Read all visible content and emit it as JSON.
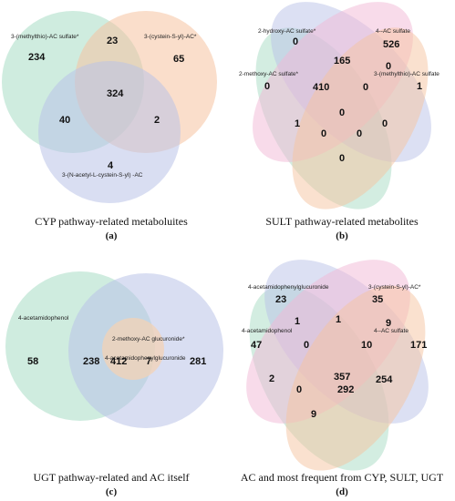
{
  "colors": {
    "green": "#a8dcc4",
    "orange": "#f6c3a0",
    "blue": "#b9c2e8",
    "pink": "#f1b8d6",
    "cream": "#f3d2b6"
  },
  "panels": [
    {
      "caption": "CYP pathway-related metaboluites",
      "letter": "a",
      "sets": [
        "3-(methylthio)-AC sulfate*",
        "3-(cystein-S-yl)-AC*",
        "3-(N-acetyl-L-cystein-S-yl) -AC"
      ],
      "values": [
        "234",
        "23",
        "65",
        "324",
        "40",
        "2",
        "4"
      ]
    },
    {
      "caption": "SULT pathway-related metabolites",
      "letter": "b",
      "sets": [
        "2-hydroxy-AC sulfate*",
        "4--AC sulfate",
        "2-methoxy-AC sulfate*",
        "3-(methylthio)-AC sulfate"
      ],
      "values": [
        "0",
        "526",
        "165",
        "0",
        "0",
        "410",
        "0",
        "1",
        "0",
        "1",
        "0",
        "0",
        "0",
        "0",
        "0"
      ]
    },
    {
      "caption": "UGT pathway-related and AC itself",
      "letter": "c",
      "sets": [
        "4-acetamidophenol",
        "2-methoxy-AC glucuronide*",
        "4-acetamidophenylglucuronide"
      ],
      "values": [
        "58",
        "238",
        "412",
        "7",
        "281"
      ]
    },
    {
      "caption": "AC and most frequent from CYP, SULT, UGT",
      "letter": "d",
      "sets": [
        "4-acetamidophenylglucuronide",
        "3-(cystein-S-yl)-AC*",
        "4-acetamidophenol",
        "4--AC sulfate"
      ],
      "values": [
        "23",
        "35",
        "1",
        "9",
        "47",
        "1",
        "171",
        "0",
        "10",
        "357",
        "2",
        "254",
        "0",
        "292",
        "9"
      ]
    }
  ]
}
